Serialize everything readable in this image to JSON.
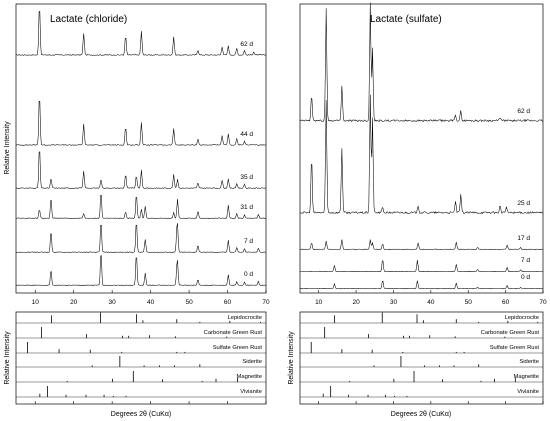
{
  "chart_data": [
    {
      "type": "line",
      "title": "Lactate (chloride)",
      "xlabel": "Degrees 2θ (CuKα)",
      "ylabel": "Relative Intensity",
      "xlim": [
        5,
        70
      ],
      "xticks": [
        10,
        20,
        30,
        40,
        50,
        60,
        70
      ],
      "series": [
        {
          "name": "62 d",
          "peaks": [
            [
              11.1,
              1.0
            ],
            [
              22.6,
              0.42
            ],
            [
              33.5,
              0.38
            ],
            [
              37.6,
              0.46
            ],
            [
              46.0,
              0.35
            ],
            [
              52.3,
              0.1
            ],
            [
              58.6,
              0.16
            ],
            [
              60.2,
              0.18
            ],
            [
              62.4,
              0.13
            ],
            [
              64.4,
              0.09
            ],
            [
              66.8,
              0.06
            ]
          ]
        },
        {
          "name": "44 d",
          "peaks": [
            [
              11.1,
              1.0
            ],
            [
              22.6,
              0.4
            ],
            [
              33.5,
              0.36
            ],
            [
              37.6,
              0.44
            ],
            [
              46.0,
              0.32
            ],
            [
              52.3,
              0.12
            ],
            [
              58.6,
              0.18
            ],
            [
              60.2,
              0.22
            ],
            [
              62.4,
              0.12
            ],
            [
              64.4,
              0.08
            ]
          ]
        },
        {
          "name": "35 d",
          "peaks": [
            [
              11.1,
              0.95
            ],
            [
              14.1,
              0.22
            ],
            [
              22.6,
              0.38
            ],
            [
              27.1,
              0.2
            ],
            [
              33.5,
              0.32
            ],
            [
              36.3,
              0.28
            ],
            [
              37.6,
              0.4
            ],
            [
              46.0,
              0.3
            ],
            [
              47.0,
              0.2
            ],
            [
              52.3,
              0.12
            ],
            [
              58.6,
              0.18
            ],
            [
              60.2,
              0.2
            ],
            [
              62.4,
              0.1
            ],
            [
              64.4,
              0.08
            ]
          ]
        },
        {
          "name": "31 d",
          "peaks": [
            [
              11.1,
              0.22
            ],
            [
              14.1,
              0.52
            ],
            [
              22.6,
              0.12
            ],
            [
              27.1,
              0.68
            ],
            [
              33.5,
              0.16
            ],
            [
              36.3,
              0.62
            ],
            [
              37.6,
              0.22
            ],
            [
              38.6,
              0.3
            ],
            [
              46.0,
              0.14
            ],
            [
              47.0,
              0.48
            ],
            [
              52.3,
              0.18
            ],
            [
              60.2,
              0.32
            ],
            [
              62.4,
              0.12
            ],
            [
              64.4,
              0.08
            ],
            [
              68.0,
              0.1
            ]
          ]
        },
        {
          "name": "7 d",
          "peaks": [
            [
              14.1,
              0.55
            ],
            [
              27.1,
              0.8
            ],
            [
              36.3,
              0.8
            ],
            [
              38.6,
              0.32
            ],
            [
              46.8,
              0.35
            ],
            [
              47.0,
              0.55
            ],
            [
              52.3,
              0.18
            ],
            [
              60.2,
              0.3
            ],
            [
              62.4,
              0.12
            ],
            [
              64.4,
              0.08
            ],
            [
              68.0,
              0.1
            ]
          ]
        },
        {
          "name": "0 d",
          "peaks": [
            [
              14.1,
              0.42
            ],
            [
              27.1,
              0.92
            ],
            [
              36.3,
              0.85
            ],
            [
              38.6,
              0.32
            ],
            [
              46.8,
              0.28
            ],
            [
              47.0,
              0.52
            ],
            [
              52.3,
              0.15
            ],
            [
              60.2,
              0.28
            ],
            [
              62.4,
              0.1
            ],
            [
              64.4,
              0.08
            ],
            [
              68.0,
              0.1
            ]
          ]
        }
      ]
    },
    {
      "type": "line",
      "title": "Lactate (sulfate)",
      "xlabel": "Degrees 2θ (CuKα)",
      "ylabel": "Relative Intensity",
      "xlim": [
        5,
        70
      ],
      "xticks": [
        10,
        20,
        30,
        40,
        50,
        60,
        70
      ],
      "series": [
        {
          "name": "62 d",
          "peaks": [
            [
              8.1,
              0.22
            ],
            [
              12.0,
              0.95
            ],
            [
              16.2,
              0.3
            ],
            [
              23.8,
              1.0
            ],
            [
              24.4,
              0.62
            ],
            [
              46.6,
              0.05
            ],
            [
              48.0,
              0.08
            ],
            [
              58.5,
              0.03
            ]
          ]
        },
        {
          "name": "25 d",
          "peaks": [
            [
              8.1,
              0.48
            ],
            [
              12.0,
              0.95
            ],
            [
              16.2,
              0.55
            ],
            [
              23.8,
              1.0
            ],
            [
              24.4,
              0.8
            ],
            [
              27.1,
              0.05
            ],
            [
              36.6,
              0.06
            ],
            [
              46.6,
              0.1
            ],
            [
              48.0,
              0.15
            ],
            [
              58.5,
              0.06
            ],
            [
              60.2,
              0.05
            ]
          ]
        },
        {
          "name": "17 d",
          "peaks": [
            [
              8.1,
              0.2
            ],
            [
              12.0,
              0.25
            ],
            [
              16.2,
              0.3
            ],
            [
              23.8,
              0.3
            ],
            [
              24.4,
              0.2
            ],
            [
              27.1,
              0.18
            ],
            [
              36.6,
              0.2
            ],
            [
              46.8,
              0.22
            ],
            [
              52.5,
              0.06
            ],
            [
              60.4,
              0.12
            ],
            [
              64.0,
              0.06
            ]
          ]
        },
        {
          "name": "7 d",
          "peaks": [
            [
              14.2,
              0.3
            ],
            [
              27.1,
              0.6
            ],
            [
              36.4,
              0.55
            ],
            [
              46.8,
              0.35
            ],
            [
              52.5,
              0.1
            ],
            [
              60.4,
              0.2
            ],
            [
              64.0,
              0.08
            ]
          ]
        },
        {
          "name": "0 d",
          "peaks": [
            [
              14.2,
              0.3
            ],
            [
              27.1,
              0.55
            ],
            [
              36.4,
              0.5
            ],
            [
              46.8,
              0.35
            ],
            [
              52.5,
              0.1
            ],
            [
              60.4,
              0.2
            ],
            [
              64.0,
              0.08
            ]
          ]
        }
      ]
    }
  ],
  "reference_patterns": {
    "ylabel": "Relative Intensity",
    "phases": [
      {
        "name": "Lepidocrocite",
        "sticks": [
          [
            14.2,
            0.7
          ],
          [
            27.0,
            0.95
          ],
          [
            36.3,
            0.8
          ],
          [
            38.0,
            0.25
          ],
          [
            46.8,
            0.35
          ],
          [
            52.8,
            0.1
          ],
          [
            60.6,
            0.2
          ],
          [
            68.6,
            0.1
          ]
        ]
      },
      {
        "name": "Carbonate Green Rust",
        "sticks": [
          [
            11.6,
            1.0
          ],
          [
            23.3,
            0.35
          ],
          [
            32.7,
            0.2
          ],
          [
            34.3,
            0.2
          ],
          [
            39.7,
            0.25
          ],
          [
            46.5,
            0.15
          ],
          [
            59.8,
            0.12
          ]
        ]
      },
      {
        "name": "Sulfate Green Rust",
        "sticks": [
          [
            8.0,
            1.0
          ],
          [
            16.2,
            0.35
          ],
          [
            24.3,
            0.3
          ],
          [
            32.5,
            0.1
          ],
          [
            46.8,
            0.1
          ],
          [
            48.9,
            0.1
          ]
        ]
      },
      {
        "name": "Siderite",
        "sticks": [
          [
            24.8,
            0.15
          ],
          [
            32.0,
            1.0
          ],
          [
            38.3,
            0.15
          ],
          [
            42.3,
            0.15
          ],
          [
            46.2,
            0.15
          ],
          [
            52.8,
            0.25
          ]
        ]
      },
      {
        "name": "Magnetite",
        "sticks": [
          [
            18.3,
            0.1
          ],
          [
            30.1,
            0.3
          ],
          [
            35.5,
            1.0
          ],
          [
            43.1,
            0.25
          ],
          [
            53.4,
            0.1
          ],
          [
            57.0,
            0.3
          ],
          [
            62.6,
            0.4
          ]
        ]
      },
      {
        "name": "Vivianite",
        "sticks": [
          [
            13.2,
            1.0
          ],
          [
            11.2,
            0.3
          ],
          [
            18.0,
            0.2
          ],
          [
            23.2,
            0.2
          ],
          [
            27.9,
            0.2
          ],
          [
            30.3,
            0.1
          ],
          [
            33.6,
            0.1
          ]
        ]
      }
    ]
  }
}
